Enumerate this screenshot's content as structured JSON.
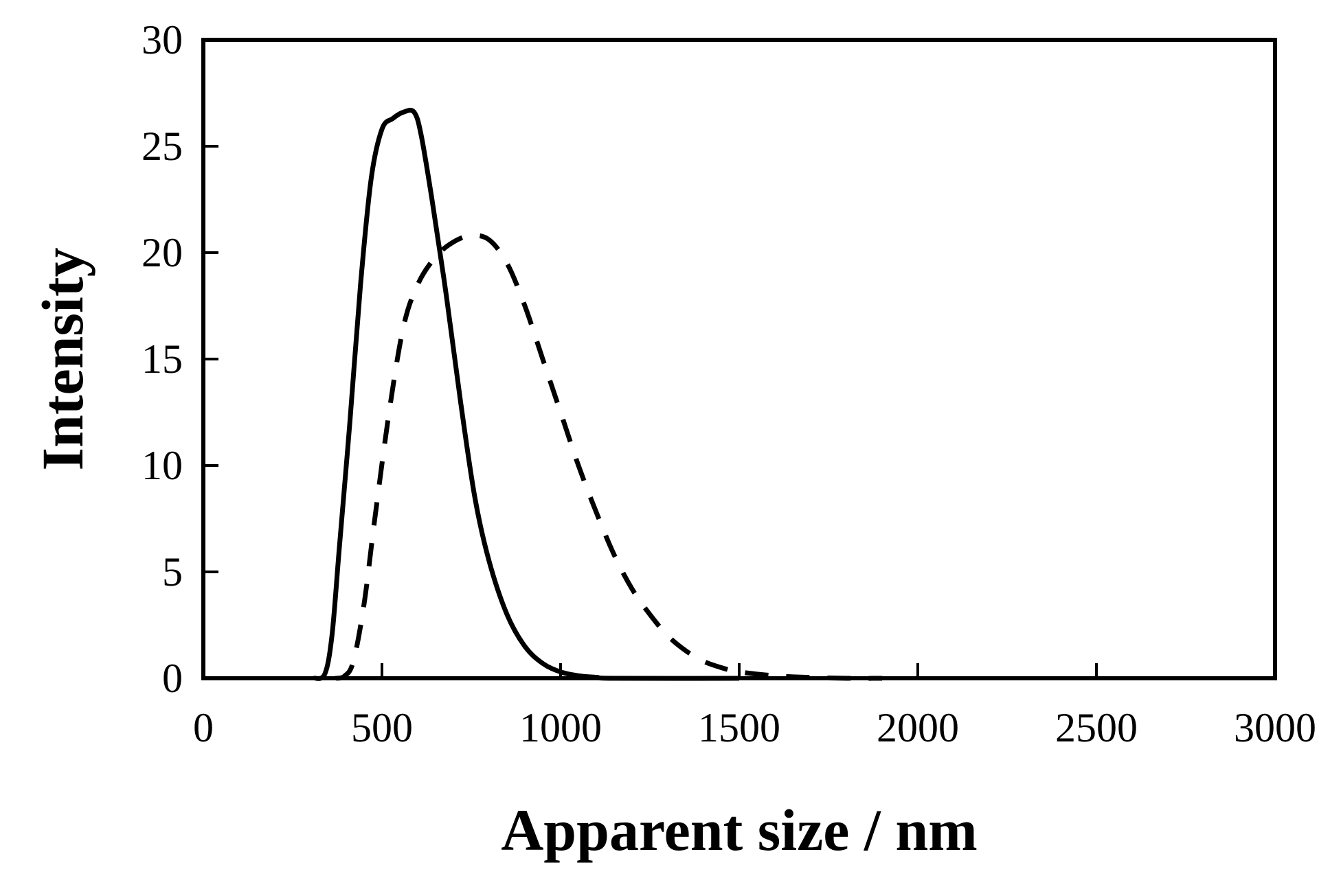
{
  "chart_data": {
    "type": "line",
    "title": "",
    "xlabel": "Apparent size / nm",
    "ylabel": "Intensity",
    "xlim": [
      0,
      3000
    ],
    "ylim": [
      0,
      30
    ],
    "xticks": [
      0,
      500,
      1000,
      1500,
      2000,
      2500,
      3000
    ],
    "yticks": [
      0,
      5,
      10,
      15,
      20,
      25,
      30
    ],
    "grid": false,
    "legend": "none",
    "series": [
      {
        "style": "solid",
        "color": "#000000",
        "points": [
          [
            310,
            0
          ],
          [
            340,
            0.2
          ],
          [
            360,
            2
          ],
          [
            380,
            6
          ],
          [
            410,
            12
          ],
          [
            440,
            18.5
          ],
          [
            470,
            23.5
          ],
          [
            500,
            25.8
          ],
          [
            530,
            26.3
          ],
          [
            560,
            26.6
          ],
          [
            590,
            26.6
          ],
          [
            610,
            25.5
          ],
          [
            640,
            22.5
          ],
          [
            680,
            18
          ],
          [
            720,
            13
          ],
          [
            760,
            8.5
          ],
          [
            800,
            5.5
          ],
          [
            850,
            3
          ],
          [
            900,
            1.5
          ],
          [
            950,
            0.7
          ],
          [
            1000,
            0.3
          ],
          [
            1050,
            0.12
          ],
          [
            1100,
            0.05
          ],
          [
            1150,
            0
          ],
          [
            1500,
            0
          ]
        ]
      },
      {
        "style": "dashed",
        "color": "#000000",
        "points": [
          [
            370,
            0
          ],
          [
            395,
            0.1
          ],
          [
            420,
            0.8
          ],
          [
            450,
            3.5
          ],
          [
            480,
            7.5
          ],
          [
            520,
            12.5
          ],
          [
            560,
            16.5
          ],
          [
            600,
            18.5
          ],
          [
            650,
            19.8
          ],
          [
            700,
            20.5
          ],
          [
            750,
            20.8
          ],
          [
            800,
            20.6
          ],
          [
            850,
            19.5
          ],
          [
            900,
            17.5
          ],
          [
            950,
            15
          ],
          [
            1000,
            12.5
          ],
          [
            1050,
            10
          ],
          [
            1100,
            7.8
          ],
          [
            1150,
            5.8
          ],
          [
            1200,
            4.2
          ],
          [
            1250,
            3
          ],
          [
            1300,
            2
          ],
          [
            1350,
            1.3
          ],
          [
            1400,
            0.8
          ],
          [
            1450,
            0.5
          ],
          [
            1500,
            0.3
          ],
          [
            1600,
            0.12
          ],
          [
            1700,
            0.04
          ],
          [
            1800,
            0
          ],
          [
            1900,
            0
          ]
        ]
      }
    ]
  }
}
